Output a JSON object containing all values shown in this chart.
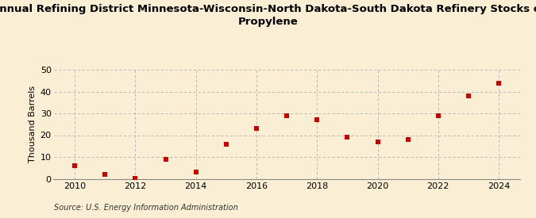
{
  "title": "Annual Refining District Minnesota-Wisconsin-North Dakota-South Dakota Refinery Stocks of\nPropylene",
  "ylabel": "Thousand Barrels",
  "source": "Source: U.S. Energy Information Administration",
  "years": [
    2010,
    2011,
    2012,
    2013,
    2014,
    2015,
    2016,
    2017,
    2018,
    2019,
    2020,
    2021,
    2022,
    2023,
    2024
  ],
  "values": [
    6,
    2,
    0.2,
    9,
    3,
    16,
    23,
    29,
    27,
    19,
    17,
    18,
    29,
    38,
    44
  ],
  "marker_color": "#cc0000",
  "marker_size": 22,
  "bg_color": "#faefd4",
  "grid_color": "#b0b0b0",
  "ylim": [
    0,
    50
  ],
  "yticks": [
    0,
    10,
    20,
    30,
    40,
    50
  ],
  "xticks": [
    2010,
    2012,
    2014,
    2016,
    2018,
    2020,
    2022,
    2024
  ],
  "title_fontsize": 9.5,
  "tick_fontsize": 8,
  "ylabel_fontsize": 8,
  "source_fontsize": 7
}
